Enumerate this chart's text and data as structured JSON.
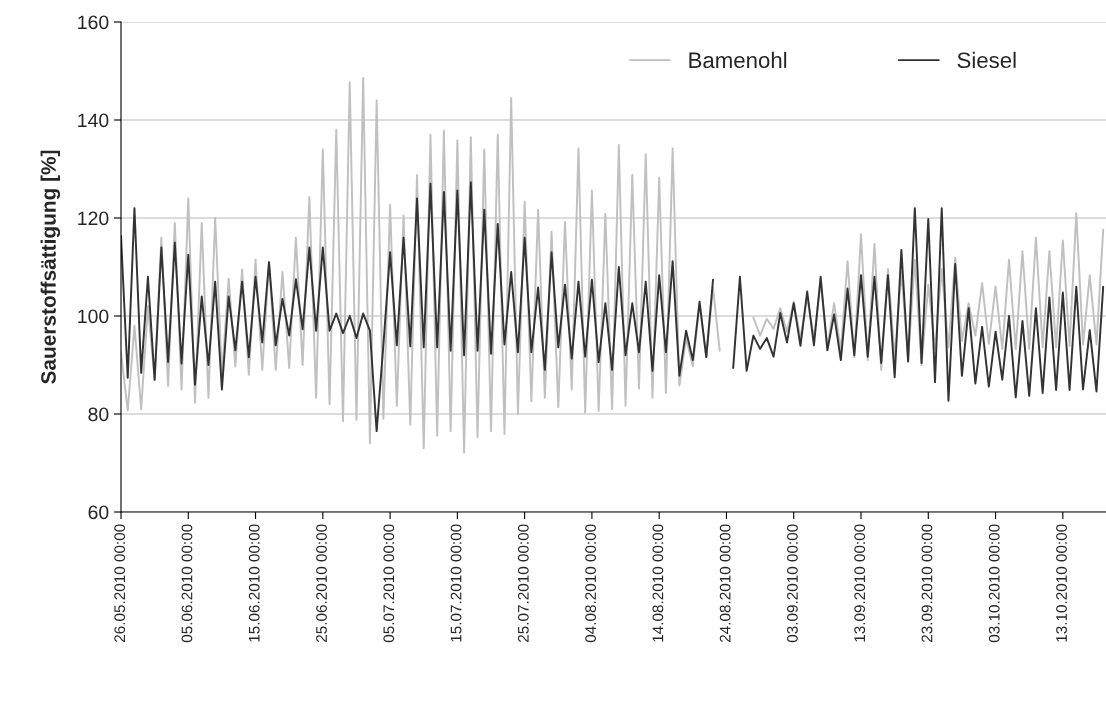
{
  "chart_data": {
    "type": "line",
    "ylabel": "Sauerstoffsättigung [%]",
    "x": [
      "2010-05-26",
      "2010-05-27",
      "2010-05-28",
      "2010-05-29",
      "2010-05-30",
      "2010-05-31",
      "2010-06-01",
      "2010-06-02",
      "2010-06-03",
      "2010-06-04",
      "2010-06-05",
      "2010-06-06",
      "2010-06-07",
      "2010-06-08",
      "2010-06-09",
      "2010-06-10",
      "2010-06-11",
      "2010-06-12",
      "2010-06-13",
      "2010-06-14",
      "2010-06-15",
      "2010-06-16",
      "2010-06-17",
      "2010-06-18",
      "2010-06-19",
      "2010-06-20",
      "2010-06-21",
      "2010-06-22",
      "2010-06-23",
      "2010-06-24",
      "2010-06-25",
      "2010-06-26",
      "2010-06-27",
      "2010-06-28",
      "2010-06-29",
      "2010-06-30",
      "2010-07-01",
      "2010-07-02",
      "2010-07-03",
      "2010-07-04",
      "2010-07-05",
      "2010-07-06",
      "2010-07-07",
      "2010-07-08",
      "2010-07-09",
      "2010-07-10",
      "2010-07-11",
      "2010-07-12",
      "2010-07-13",
      "2010-07-14",
      "2010-07-15",
      "2010-07-16",
      "2010-07-17",
      "2010-07-18",
      "2010-07-19",
      "2010-07-20",
      "2010-07-21",
      "2010-07-22",
      "2010-07-23",
      "2010-07-24",
      "2010-07-25",
      "2010-07-26",
      "2010-07-27",
      "2010-07-28",
      "2010-07-29",
      "2010-07-30",
      "2010-07-31",
      "2010-08-01",
      "2010-08-02",
      "2010-08-03",
      "2010-08-04",
      "2010-08-05",
      "2010-08-06",
      "2010-08-07",
      "2010-08-08",
      "2010-08-09",
      "2010-08-10",
      "2010-08-11",
      "2010-08-12",
      "2010-08-13",
      "2010-08-14",
      "2010-08-15",
      "2010-08-16",
      "2010-08-17",
      "2010-08-18",
      "2010-08-19",
      "2010-08-20",
      "2010-08-21",
      "2010-08-22",
      "2010-08-23",
      "2010-08-24",
      "2010-08-25",
      "2010-08-26",
      "2010-08-27",
      "2010-08-28",
      "2010-08-29",
      "2010-08-30",
      "2010-08-31",
      "2010-09-01",
      "2010-09-02",
      "2010-09-03",
      "2010-09-04",
      "2010-09-05",
      "2010-09-06",
      "2010-09-07",
      "2010-09-08",
      "2010-09-09",
      "2010-09-10",
      "2010-09-11",
      "2010-09-12",
      "2010-09-13",
      "2010-09-14",
      "2010-09-15",
      "2010-09-16",
      "2010-09-17",
      "2010-09-18",
      "2010-09-19",
      "2010-09-20",
      "2010-09-21",
      "2010-09-22",
      "2010-09-23",
      "2010-09-24",
      "2010-09-25",
      "2010-09-26",
      "2010-09-27",
      "2010-09-28",
      "2010-09-29",
      "2010-09-30",
      "2010-10-01",
      "2010-10-02",
      "2010-10-03",
      "2010-10-04",
      "2010-10-05",
      "2010-10-06",
      "2010-10-07",
      "2010-10-08",
      "2010-10-09",
      "2010-10-10",
      "2010-10-11",
      "2010-10-12",
      "2010-10-13",
      "2010-10-14",
      "2010-10-15",
      "2010-10-16",
      "2010-10-17",
      "2010-10-18",
      "2010-10-19"
    ],
    "series": [
      {
        "name": "Bamenohl",
        "color": "#c0c0c0",
        "values": [
          92.6,
          80.7,
          98,
          81,
          102,
          87,
          116,
          85.7,
          119,
          85,
          124,
          82.3,
          119,
          83.3,
          120,
          88,
          107.6,
          89.7,
          109.5,
          88,
          111.5,
          89,
          111,
          89,
          109,
          89.4,
          116,
          90,
          124.3,
          83.3,
          134,
          82,
          138,
          78.5,
          147.7,
          78.8,
          148.6,
          74,
          144,
          79,
          122.7,
          81.7,
          120.5,
          77.8,
          128.8,
          73,
          137,
          75.6,
          137.8,
          76.5,
          135.8,
          72.1,
          136.5,
          75.3,
          134,
          76.5,
          137,
          75.9,
          144.5,
          80,
          123.3,
          82.6,
          121.7,
          83.3,
          117.2,
          81.4,
          119.2,
          85,
          134.2,
          80.3,
          125.6,
          80.6,
          120.8,
          81,
          134.9,
          81.7,
          128.8,
          85.2,
          133,
          83.3,
          128.2,
          84.3,
          134.2,
          85.8,
          95.5,
          89.7,
          102.6,
          91.6,
          105.8,
          92.9,
          null,
          null,
          null,
          null,
          99.7,
          96,
          99.4,
          97.4,
          101.6,
          96.8,
          102.9,
          95.5,
          103.8,
          95.5,
          107,
          93.6,
          102.6,
          92.9,
          111.2,
          91.6,
          116.7,
          91,
          114.7,
          89,
          109.6,
          91.6,
          109,
          91.3,
          111.5,
          90,
          106.4,
          93.3,
          109.6,
          93.6,
          111.9,
          94.9,
          102.6,
          96,
          106.7,
          94.3,
          106,
          93.3,
          111.5,
          93.3,
          113.2,
          93.3,
          116,
          93.6,
          113.2,
          93.6,
          115.4,
          93.9,
          121,
          94.2,
          108.3,
          94.2,
          117.6
        ]
      },
      {
        "name": "Siesel",
        "color": "#333333",
        "values": [
          116.3,
          87.4,
          122,
          88.4,
          108,
          87,
          114,
          90.6,
          115,
          90.3,
          112.5,
          86,
          104,
          90,
          107,
          85,
          104,
          93,
          107,
          91.6,
          108,
          94.6,
          111,
          94,
          103.5,
          96,
          107.5,
          97.3,
          114,
          97,
          114,
          97,
          100.5,
          96.5,
          100,
          95.5,
          100.5,
          97,
          76.5,
          94,
          113,
          94,
          116,
          93.8,
          124,
          93.6,
          127,
          93.6,
          125.3,
          92.9,
          125.6,
          92,
          127.3,
          92.9,
          121.7,
          92.3,
          118.8,
          94.2,
          109,
          92.6,
          116,
          92.6,
          105.8,
          89,
          113,
          93.6,
          106.4,
          91.3,
          107,
          91.7,
          107.4,
          90.6,
          102.6,
          89,
          110,
          92,
          102.6,
          92.6,
          107,
          88.8,
          108.3,
          92.6,
          111.2,
          87.8,
          97,
          91,
          102.9,
          91.6,
          107.4,
          null,
          null,
          89.4,
          108,
          88.8,
          96,
          93.3,
          95.5,
          91.7,
          100.6,
          94.6,
          102.6,
          93.9,
          105,
          94,
          108,
          93,
          100.3,
          91,
          105.6,
          92,
          108.3,
          91.7,
          108,
          90.4,
          108.3,
          87.5,
          113.5,
          90.7,
          122,
          90.4,
          119.8,
          86.5,
          122,
          82.7,
          110.6,
          87.8,
          101.6,
          86.2,
          97.8,
          85.6,
          96.8,
          87,
          100,
          83.4,
          99,
          83.7,
          101.6,
          84.3,
          103.8,
          84.9,
          104.8,
          84.9,
          106,
          85,
          97.1,
          84.6,
          106
        ]
      }
    ],
    "xlim": [
      "2010-05-26",
      "2010-10-19T10:00"
    ],
    "xticks": [
      {
        "value": "2010-05-26",
        "label": "26.05.2010 00:00"
      },
      {
        "value": "2010-06-05",
        "label": "05.06.2010 00:00"
      },
      {
        "value": "2010-06-15",
        "label": "15.06.2010 00:00"
      },
      {
        "value": "2010-06-25",
        "label": "25.06.2010 00:00"
      },
      {
        "value": "2010-07-05",
        "label": "05.07.2010 00:00"
      },
      {
        "value": "2010-07-15",
        "label": "15.07.2010 00:00"
      },
      {
        "value": "2010-07-25",
        "label": "25.07.2010 00:00"
      },
      {
        "value": "2010-08-04",
        "label": "04.08.2010 00:00"
      },
      {
        "value": "2010-08-14",
        "label": "14.08.2010 00:00"
      },
      {
        "value": "2010-08-24",
        "label": "24.08.2010 00:00"
      },
      {
        "value": "2010-09-03",
        "label": "03.09.2010 00:00"
      },
      {
        "value": "2010-09-13",
        "label": "13.09.2010 00:00"
      },
      {
        "value": "2010-09-23",
        "label": "23.09.2010 00:00"
      },
      {
        "value": "2010-10-03",
        "label": "03.10.2010 00:00"
      },
      {
        "value": "2010-10-13",
        "label": "13.10.2010 00:00"
      }
    ],
    "ylim": [
      60,
      160
    ],
    "yticks": [
      60,
      80,
      100,
      120,
      140,
      160
    ],
    "grid": "y",
    "legend": "top right"
  }
}
